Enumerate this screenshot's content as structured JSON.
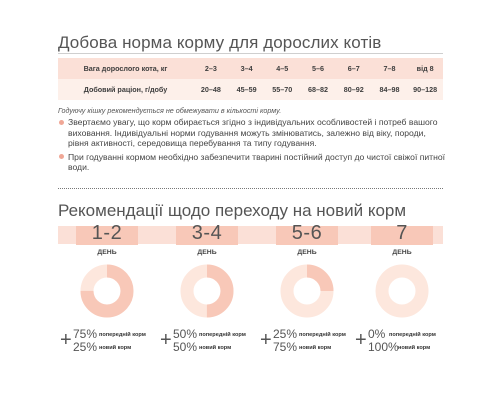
{
  "title": "Добова норма корму для дорослих котів",
  "table": {
    "row1_label": "Вага дорослого кота, кг",
    "row1": [
      "2–3",
      "3–4",
      "4–5",
      "5–6",
      "6–7",
      "7–8",
      "від 8"
    ],
    "row2_label": "Добовий раціон, г/добу",
    "row2": [
      "20–48",
      "45–59",
      "55–70",
      "68–82",
      "80–92",
      "84–98",
      "90–128"
    ]
  },
  "note": "Годуючу кішку рекомендується не обмежувати в кількості корму.",
  "bullets": [
    "Звертаємо увагу, що корм обирається згідно з індивідуальних особливостей і потреб вашого виховання. Індивідуальні норми годування можуть змінюватись, залежно від віку, породи, рівня активності, середовища перебування та типу годування.",
    "При годуванні кормом необхідно забезпечити тварині постійний доступ до чистої свіжої питної води."
  ],
  "transition_title": "Рекомендації щодо переходу на новий корм",
  "colors": {
    "previous": "#f8c8b8",
    "new": "#fde7dd",
    "accent": "#f0a796"
  },
  "stages": [
    {
      "days": "1-2",
      "day_label": "ДЕНЬ",
      "previous_pct": 75,
      "new_pct": 25,
      "previous_text": "75%",
      "new_text": "25%",
      "previous_label": "попередній корм",
      "new_label": "новий корм"
    },
    {
      "days": "3-4",
      "day_label": "ДЕНЬ",
      "previous_pct": 50,
      "new_pct": 50,
      "previous_text": "50%",
      "new_text": "50%",
      "previous_label": "попередній корм",
      "new_label": "новий корм"
    },
    {
      "days": "5-6",
      "day_label": "ДЕНЬ",
      "previous_pct": 25,
      "new_pct": 75,
      "previous_text": "25%",
      "new_text": "75%",
      "previous_label": "попередній корм",
      "new_label": "новий корм"
    },
    {
      "days": "7",
      "day_label": "ДЕНЬ",
      "previous_pct": 0,
      "new_pct": 100,
      "previous_text": "0%",
      "new_text": "100%",
      "previous_label": "попередній корм",
      "new_label": "новий корм"
    }
  ]
}
